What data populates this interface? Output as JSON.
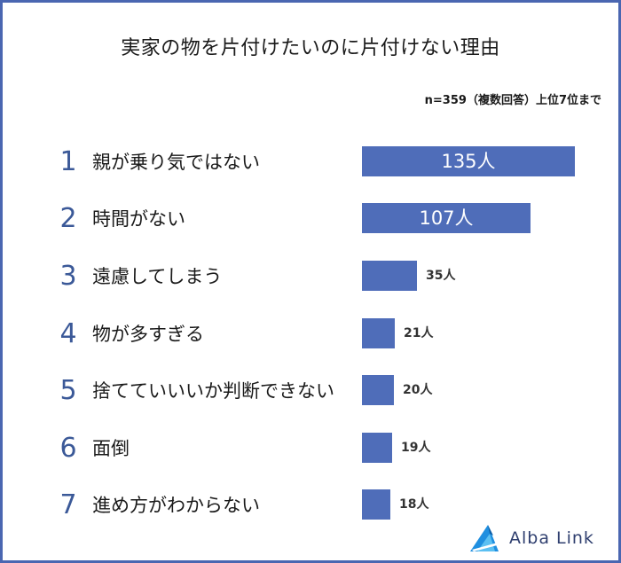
{
  "title": "実家の物を片付けたいのに片付けない理由",
  "note": "n=359（複数回答）上位7位まで",
  "brand": "Alba Link",
  "colors": {
    "bar": "#4f6db9",
    "rank": "#3b5998",
    "frame": "#4a66b1"
  },
  "chart_data": {
    "type": "bar",
    "orientation": "horizontal",
    "categories": [
      "親が乗り気ではない",
      "時間がない",
      "遠慮してしまう",
      "物が多すぎる",
      "捨てていいいか判断できない",
      "面倒",
      "進め方がわからない"
    ],
    "ranks": [
      "1",
      "2",
      "3",
      "4",
      "5",
      "6",
      "7"
    ],
    "values": [
      135,
      107,
      35,
      21,
      20,
      19,
      18
    ],
    "value_labels": [
      "135人",
      "107人",
      "35人",
      "21人",
      "20人",
      "19人",
      "18人"
    ],
    "unit": "人",
    "xlim": [
      0,
      135
    ]
  }
}
